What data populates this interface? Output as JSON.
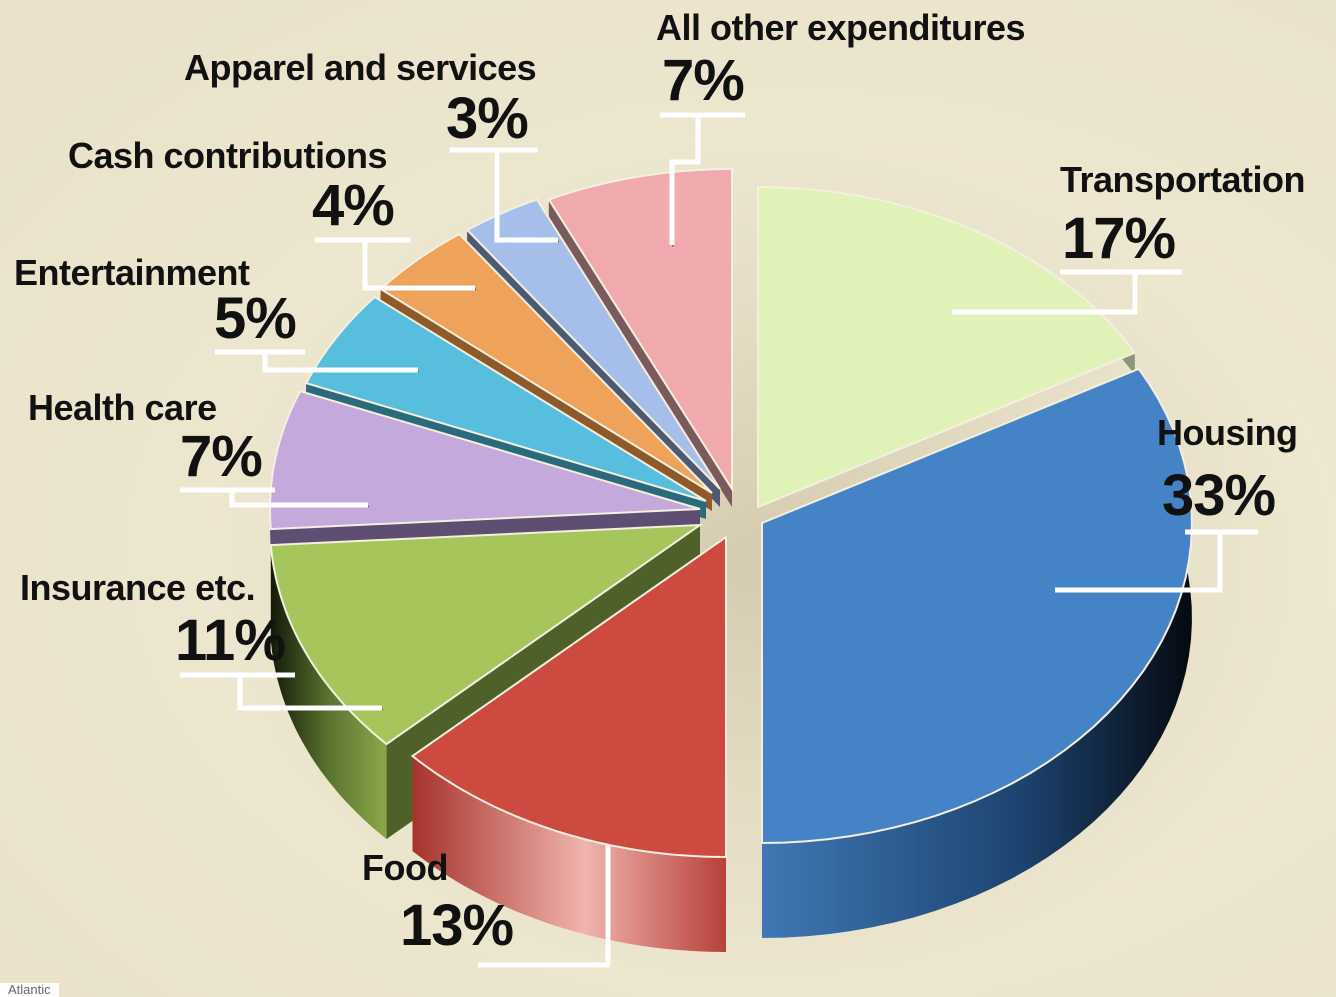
{
  "chart_data": {
    "type": "pie",
    "title": "",
    "slices": [
      {
        "label": "Transportation",
        "value": 17,
        "display": "17%",
        "color": "#e0f2b8",
        "side": "#8a977a"
      },
      {
        "label": "Housing",
        "value": 33,
        "display": "33%",
        "color": "#4484c6",
        "side": "#1d3f63"
      },
      {
        "label": "Food",
        "value": 13,
        "display": "13%",
        "color": "#cc4a40",
        "side": "#a93a33"
      },
      {
        "label": "Insurance etc.",
        "value": 11,
        "display": "11%",
        "color": "#a6c55a",
        "side": "#4e6128"
      },
      {
        "label": "Health care",
        "value": 7,
        "display": "7%",
        "color": "#c3a9dc",
        "side": "#5e4e71"
      },
      {
        "label": "Entertainment",
        "value": 5,
        "display": "5%",
        "color": "#57bede",
        "side": "#2a6a7d"
      },
      {
        "label": "Cash contributions",
        "value": 4,
        "display": "4%",
        "color": "#efa25a",
        "side": "#8f5a2a"
      },
      {
        "label": "Apparel and services",
        "value": 3,
        "display": "3%",
        "color": "#a6bfea",
        "side": "#4c5a74"
      },
      {
        "label": "All other expenditures",
        "value": 7,
        "display": "7%",
        "color": "#f0aaae",
        "side": "#7a5a5c"
      }
    ],
    "legend": "none",
    "style": "3d exploded pie with callout labels"
  },
  "credit": "Atlantic"
}
